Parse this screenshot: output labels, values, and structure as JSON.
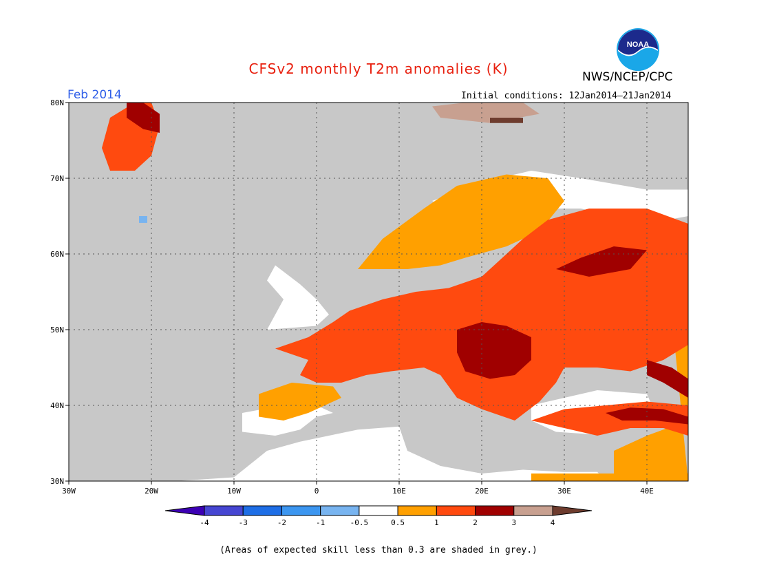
{
  "title": "CFSv2 monthly T2m anomalies (K)",
  "agency": "NWS/NCEP/CPC",
  "logo_text": "NOAA",
  "period": "Feb 2014",
  "initial_conditions": "Initial conditions: 12Jan2014–21Jan2014",
  "footnote": "(Areas of expected skill less than 0.3 are shaded in grey.)",
  "colors": {
    "title": "#e8200f",
    "period": "#2f5ee8",
    "skill_grey": "#c8c8c8",
    "ocean_white": "#ffffff",
    "bin_0.5_1": "#ffa000",
    "bin_1_2": "#ff4a0f",
    "bin_2_3": "#a00000",
    "bin_3_4": "#c8a090",
    "bin_gt4": "#6e3c2e",
    "bin_-1_-0.5": "#78b4f0"
  },
  "map": {
    "lon_ticks": [
      "30W",
      "20W",
      "10W",
      "0",
      "10E",
      "20E",
      "30E",
      "40E"
    ],
    "lat_ticks": [
      "80N",
      "70N",
      "60N",
      "50N",
      "40N",
      "30N"
    ],
    "lon_range": [
      -30,
      45
    ],
    "lat_range": [
      30,
      80
    ],
    "gridlines": true
  },
  "colorbar": {
    "labels": [
      "-4",
      "-3",
      "-2",
      "-1",
      "-0.5",
      "0.5",
      "1",
      "2",
      "3",
      "4"
    ],
    "colors": [
      "#3c00b4",
      "#4646d2",
      "#1e6ee6",
      "#3c96f0",
      "#78b4f0",
      "#ffffff",
      "#ffa000",
      "#ff4a0f",
      "#a00000",
      "#c8a090",
      "#6e3c2e"
    ]
  }
}
